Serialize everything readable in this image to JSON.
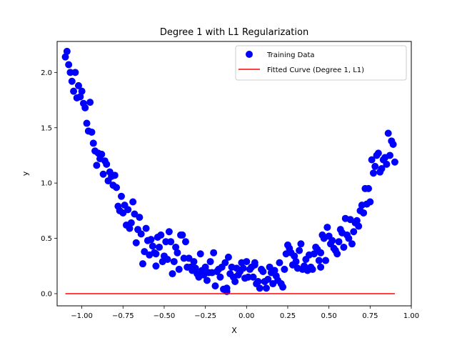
{
  "chart_data": {
    "type": "scatter",
    "title": "Degree 1 with L1 Regularization",
    "xlabel": "X",
    "ylabel": "y",
    "xlim": [
      -1.15,
      1.0
    ],
    "ylim": [
      -0.11,
      2.28
    ],
    "xticks": [
      -1.0,
      -0.75,
      -0.5,
      -0.25,
      0.0,
      0.25,
      0.5,
      0.75,
      1.0
    ],
    "xtick_labels": [
      "−1.00",
      "−0.75",
      "−0.50",
      "−0.25",
      "0.00",
      "0.25",
      "0.50",
      "0.75",
      "1.00"
    ],
    "yticks": [
      0.0,
      0.5,
      1.0,
      1.5,
      2.0
    ],
    "ytick_labels": [
      "0.0",
      "0.5",
      "1.0",
      "1.5",
      "2.0"
    ],
    "legend_position": "top-right",
    "series": [
      {
        "name": "Training Data",
        "kind": "scatter",
        "color": "#0000ff",
        "points": [
          [
            -1.1,
            2.14
          ],
          [
            -1.09,
            2.19
          ],
          [
            -1.08,
            2.07
          ],
          [
            -1.07,
            2.0
          ],
          [
            -1.06,
            1.92
          ],
          [
            -1.05,
            1.83
          ],
          [
            -1.04,
            2.0
          ],
          [
            -1.03,
            1.77
          ],
          [
            -1.02,
            1.88
          ],
          [
            -1.01,
            1.78
          ],
          [
            -1.0,
            1.83
          ],
          [
            -0.99,
            1.72
          ],
          [
            -0.98,
            1.68
          ],
          [
            -0.97,
            1.54
          ],
          [
            -0.96,
            1.47
          ],
          [
            -0.95,
            1.73
          ],
          [
            -0.94,
            1.46
          ],
          [
            -0.93,
            1.36
          ],
          [
            -0.92,
            1.29
          ],
          [
            -0.91,
            1.16
          ],
          [
            -0.9,
            1.27
          ],
          [
            -0.89,
            1.22
          ],
          [
            -0.88,
            1.26
          ],
          [
            -0.87,
            1.08
          ],
          [
            -0.86,
            1.2
          ],
          [
            -0.85,
            1.17
          ],
          [
            -0.84,
            1.02
          ],
          [
            -0.83,
            1.1
          ],
          [
            -0.82,
            1.06
          ],
          [
            -0.81,
            0.98
          ],
          [
            -0.8,
            1.07
          ],
          [
            -0.79,
            0.96
          ],
          [
            -0.78,
            0.79
          ],
          [
            -0.77,
            0.75
          ],
          [
            -0.76,
            0.88
          ],
          [
            -0.75,
            0.73
          ],
          [
            -0.74,
            0.8
          ],
          [
            -0.73,
            0.62
          ],
          [
            -0.72,
            0.76
          ],
          [
            -0.71,
            0.59
          ],
          [
            -0.7,
            0.64
          ],
          [
            -0.69,
            0.83
          ],
          [
            -0.68,
            0.72
          ],
          [
            -0.67,
            0.46
          ],
          [
            -0.66,
            0.58
          ],
          [
            -0.65,
            0.69
          ],
          [
            -0.64,
            0.54
          ],
          [
            -0.63,
            0.27
          ],
          [
            -0.62,
            0.38
          ],
          [
            -0.61,
            0.59
          ],
          [
            -0.6,
            0.48
          ],
          [
            -0.59,
            0.35
          ],
          [
            -0.58,
            0.49
          ],
          [
            -0.57,
            0.43
          ],
          [
            -0.56,
            0.37
          ],
          [
            -0.55,
            0.25
          ],
          [
            -0.54,
            0.51
          ],
          [
            -0.53,
            0.42
          ],
          [
            -0.52,
            0.53
          ],
          [
            -0.51,
            0.29
          ],
          [
            -0.5,
            0.34
          ],
          [
            -0.49,
            0.47
          ],
          [
            -0.48,
            0.31
          ],
          [
            -0.47,
            0.56
          ],
          [
            -0.46,
            0.47
          ],
          [
            -0.45,
            0.18
          ],
          [
            -0.44,
            0.29
          ],
          [
            -0.43,
            0.42
          ],
          [
            -0.42,
            0.37
          ],
          [
            -0.41,
            0.22
          ],
          [
            -0.4,
            0.53
          ],
          [
            -0.39,
            0.53
          ],
          [
            -0.38,
            0.32
          ],
          [
            -0.37,
            0.47
          ],
          [
            -0.36,
            0.24
          ],
          [
            -0.35,
            0.32
          ],
          [
            -0.34,
            0.24
          ],
          [
            -0.33,
            0.21
          ],
          [
            -0.32,
            0.29
          ],
          [
            -0.31,
            0.23
          ],
          [
            -0.3,
            0.18
          ],
          [
            -0.29,
            0.15
          ],
          [
            -0.28,
            0.36
          ],
          [
            -0.27,
            0.21
          ],
          [
            -0.26,
            0.17
          ],
          [
            -0.25,
            0.24
          ],
          [
            -0.24,
            0.12
          ],
          [
            -0.23,
            0.19
          ],
          [
            -0.22,
            0.29
          ],
          [
            -0.21,
            0.19
          ],
          [
            -0.2,
            0.37
          ],
          [
            -0.19,
            0.07
          ],
          [
            -0.18,
            0.2
          ],
          [
            -0.17,
            0.22
          ],
          [
            -0.16,
            0.15
          ],
          [
            -0.15,
            0.24
          ],
          [
            -0.14,
            0.04
          ],
          [
            -0.13,
            0.28
          ],
          [
            -0.12,
            0.02
          ],
          [
            -0.11,
            0.33
          ],
          [
            -0.1,
            0.18
          ],
          [
            -0.09,
            0.24
          ],
          [
            -0.08,
            0.15
          ],
          [
            -0.07,
            0.11
          ],
          [
            -0.06,
            0.23
          ],
          [
            -0.05,
            0.17
          ],
          [
            -0.04,
            0.2
          ],
          [
            -0.03,
            0.28
          ],
          [
            -0.02,
            0.23
          ],
          [
            -0.01,
            0.14
          ],
          [
            0.0,
            0.29
          ],
          [
            0.01,
            0.15
          ],
          [
            0.02,
            0.22
          ],
          [
            0.03,
            0.24
          ],
          [
            0.04,
            0.15
          ],
          [
            0.05,
            0.26
          ],
          [
            0.06,
            0.09
          ],
          [
            0.07,
            0.11
          ],
          [
            0.08,
            0.05
          ],
          [
            0.09,
            0.22
          ],
          [
            0.1,
            0.2
          ],
          [
            0.11,
            0.11
          ],
          [
            0.12,
            0.05
          ],
          [
            0.13,
            0.13
          ],
          [
            0.14,
            0.24
          ],
          [
            0.15,
            0.19
          ],
          [
            0.16,
            0.09
          ],
          [
            0.17,
            0.21
          ],
          [
            0.18,
            0.16
          ],
          [
            0.19,
            0.12
          ],
          [
            0.2,
            0.28
          ],
          [
            0.21,
            0.09
          ],
          [
            0.22,
            0.06
          ],
          [
            0.23,
            0.22
          ],
          [
            0.24,
            0.36
          ],
          [
            0.25,
            0.44
          ],
          [
            0.26,
            0.41
          ],
          [
            0.27,
            0.37
          ],
          [
            0.28,
            0.26
          ],
          [
            0.29,
            0.34
          ],
          [
            0.3,
            0.29
          ],
          [
            0.31,
            0.23
          ],
          [
            0.32,
            0.39
          ],
          [
            0.33,
            0.45
          ],
          [
            0.34,
            0.22
          ],
          [
            0.35,
            0.25
          ],
          [
            0.36,
            0.31
          ],
          [
            0.37,
            0.21
          ],
          [
            0.38,
            0.35
          ],
          [
            0.39,
            0.24
          ],
          [
            0.4,
            0.22
          ],
          [
            0.41,
            0.36
          ],
          [
            0.42,
            0.42
          ],
          [
            0.43,
            0.4
          ],
          [
            0.44,
            0.3
          ],
          [
            0.45,
            0.37
          ],
          [
            0.46,
            0.53
          ],
          [
            0.47,
            0.5
          ],
          [
            0.48,
            0.3
          ],
          [
            0.49,
            0.6
          ],
          [
            0.5,
            0.52
          ],
          [
            0.51,
            0.45
          ],
          [
            0.52,
            0.48
          ],
          [
            0.53,
            0.41
          ],
          [
            0.54,
            0.39
          ],
          [
            0.55,
            0.36
          ],
          [
            0.56,
            0.47
          ],
          [
            0.57,
            0.58
          ],
          [
            0.58,
            0.55
          ],
          [
            0.59,
            0.42
          ],
          [
            0.6,
            0.68
          ],
          [
            0.61,
            0.53
          ],
          [
            0.62,
            0.5
          ],
          [
            0.63,
            0.67
          ],
          [
            0.64,
            0.45
          ],
          [
            0.65,
            0.56
          ],
          [
            0.66,
            0.64
          ],
          [
            0.67,
            0.66
          ],
          [
            0.68,
            0.61
          ],
          [
            0.69,
            0.75
          ],
          [
            0.7,
            0.8
          ],
          [
            0.71,
            0.73
          ],
          [
            0.72,
            0.95
          ],
          [
            0.73,
            0.81
          ],
          [
            0.74,
            0.95
          ],
          [
            0.75,
            0.83
          ],
          [
            0.76,
            1.21
          ],
          [
            0.77,
            1.09
          ],
          [
            0.78,
            1.15
          ],
          [
            0.79,
            1.25
          ],
          [
            0.8,
            1.27
          ],
          [
            0.81,
            1.1
          ],
          [
            0.82,
            1.13
          ],
          [
            0.83,
            1.21
          ],
          [
            0.84,
            1.23
          ],
          [
            0.85,
            1.17
          ],
          [
            0.86,
            1.45
          ],
          [
            0.87,
            1.25
          ],
          [
            0.88,
            1.38
          ],
          [
            0.89,
            1.35
          ],
          [
            0.9,
            1.19
          ],
          [
            -0.12,
            0.05
          ],
          [
            0.05,
            0.28
          ],
          [
            -0.55,
            0.36
          ],
          [
            0.45,
            0.24
          ]
        ]
      },
      {
        "name": "Fitted Curve (Degree 1, L1)",
        "kind": "line",
        "color": "#ff0000",
        "x": [
          -1.1,
          0.9
        ],
        "y": [
          0.0,
          0.0
        ]
      }
    ]
  }
}
